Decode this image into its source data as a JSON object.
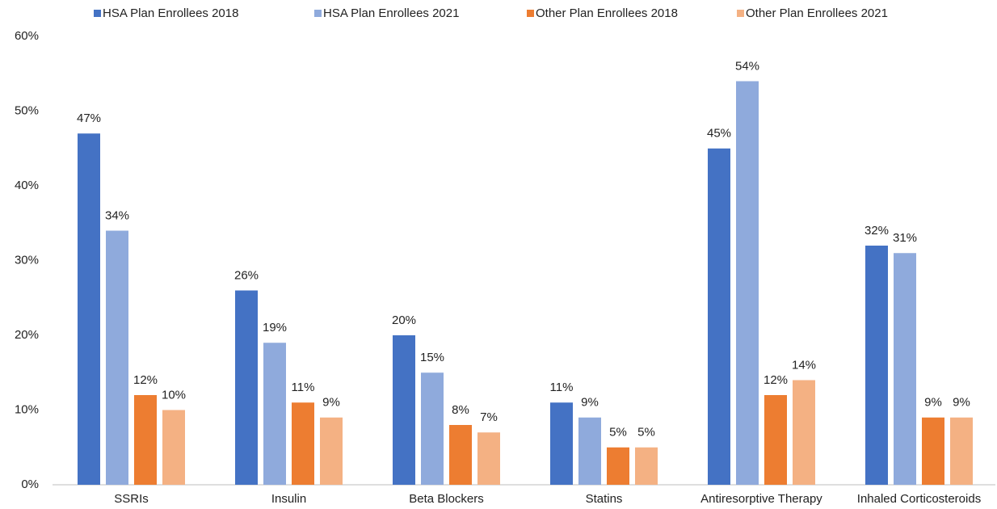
{
  "chart_data": {
    "type": "bar",
    "categories": [
      "SSRIs",
      "Insulin",
      "Beta Blockers",
      "Statins",
      "Antiresorptive Therapy",
      "Inhaled Corticosteroids"
    ],
    "series": [
      {
        "name": "HSA Plan Enrollees 2018",
        "color": "#4472c4",
        "values": [
          47,
          26,
          20,
          11,
          45,
          32
        ],
        "value_labels": [
          "47%",
          "26%",
          "20%",
          "11%",
          "45%",
          "32%"
        ]
      },
      {
        "name": "HSA Plan Enrollees 2021",
        "color": "#8faadc",
        "values": [
          34,
          19,
          15,
          9,
          54,
          31
        ],
        "value_labels": [
          "34%",
          "19%",
          "15%",
          "9%",
          "54%",
          "31%"
        ]
      },
      {
        "name": "Other Plan Enrollees 2018",
        "color": "#ed7d31",
        "values": [
          12,
          11,
          8,
          5,
          12,
          9
        ],
        "value_labels": [
          "12%",
          "11%",
          "8%",
          "5%",
          "12%",
          "9%"
        ]
      },
      {
        "name": "Other Plan Enrollees 2021",
        "color": "#f4b183",
        "values": [
          10,
          9,
          7,
          5,
          14,
          9
        ],
        "value_labels": [
          "10%",
          "9%",
          "7%",
          "5%",
          "14%",
          "9%"
        ]
      }
    ],
    "ylim": [
      0,
      60
    ],
    "yticks": [
      {
        "value": 0,
        "label": "0%"
      },
      {
        "value": 10,
        "label": "10%"
      },
      {
        "value": 20,
        "label": "20%"
      },
      {
        "value": 30,
        "label": "30%"
      },
      {
        "value": 40,
        "label": "40%"
      },
      {
        "value": 50,
        "label": "50%"
      },
      {
        "value": 60,
        "label": "60%"
      }
    ],
    "grid": false,
    "legend": "top"
  }
}
